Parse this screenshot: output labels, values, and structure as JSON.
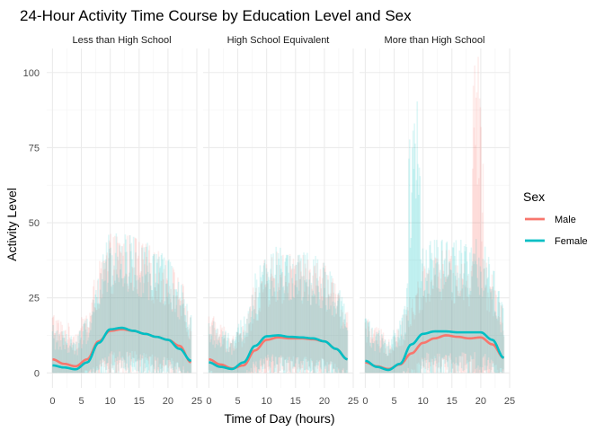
{
  "chart_data": {
    "type": "line",
    "title": "24-Hour Activity Time Course by Education Level and Sex",
    "xlabel": "Time of Day (hours)",
    "ylabel": "Activity Level",
    "xlim": [
      0,
      24
    ],
    "ylim": [
      0,
      105
    ],
    "x_ticks": [
      0,
      5,
      10,
      15,
      20,
      25
    ],
    "y_ticks": [
      0,
      25,
      50,
      75,
      100
    ],
    "grid": true,
    "legend": {
      "title": "Sex",
      "position": "right",
      "entries": [
        {
          "label": "Male",
          "color": "#F8766D"
        },
        {
          "label": "Female",
          "color": "#00BFC4"
        }
      ]
    },
    "x": [
      0,
      2,
      4,
      6,
      8,
      10,
      12,
      14,
      16,
      18,
      20,
      22,
      24
    ],
    "panels": [
      {
        "strip": "Less than High School",
        "series": [
          {
            "name": "Male",
            "color": "#F8766D",
            "values": [
              4.5,
              3.0,
              2.2,
              4.5,
              10.5,
              14.0,
              14.5,
              14.0,
              13.0,
              12.0,
              11.0,
              9.0,
              3.5
            ]
          },
          {
            "name": "Female",
            "color": "#00BFC4",
            "values": [
              2.5,
              1.8,
              1.2,
              3.5,
              10.0,
              14.5,
              15.0,
              14.0,
              13.0,
              12.0,
              11.0,
              8.0,
              4.0
            ]
          }
        ]
      },
      {
        "strip": "High School Equivalent",
        "series": [
          {
            "name": "Male",
            "color": "#F8766D",
            "values": [
              4.5,
              2.8,
              1.5,
              2.5,
              7.5,
              11.0,
              11.8,
              11.5,
              11.5,
              11.2,
              10.5,
              8.0,
              4.5
            ]
          },
          {
            "name": "Female",
            "color": "#00BFC4",
            "values": [
              3.5,
              2.0,
              1.3,
              3.5,
              9.0,
              12.2,
              12.5,
              12.0,
              11.8,
              11.5,
              10.5,
              8.0,
              4.5
            ]
          }
        ]
      },
      {
        "strip": "More than High School",
        "series": [
          {
            "name": "Male",
            "color": "#F8766D",
            "values": [
              3.5,
              2.2,
              1.3,
              2.8,
              6.5,
              10.0,
              11.5,
              12.5,
              12.0,
              11.5,
              11.8,
              9.5,
              5.0
            ]
          },
          {
            "name": "Female",
            "color": "#00BFC4",
            "values": [
              4.0,
              2.0,
              1.0,
              3.0,
              9.5,
              13.0,
              13.8,
              13.8,
              13.5,
              13.5,
              13.5,
              11.0,
              5.0
            ]
          }
        ]
      }
    ]
  }
}
